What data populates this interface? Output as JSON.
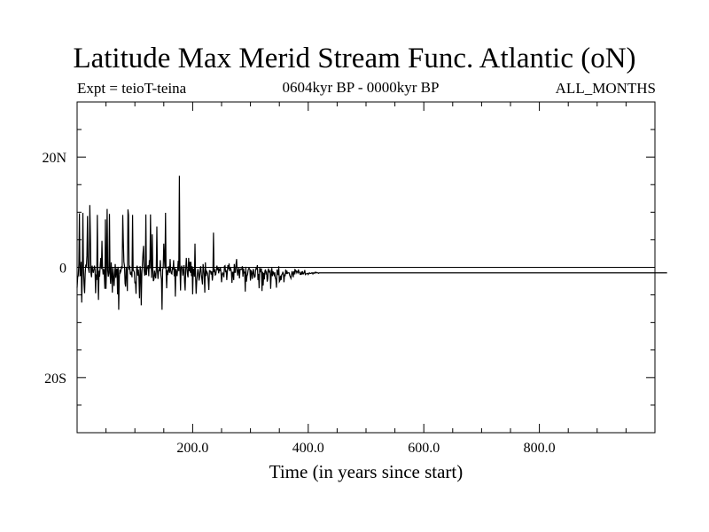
{
  "chart_data": {
    "type": "line",
    "title": "Latitude Max Merid Stream Func. Atlantic (oN)",
    "subtitle_left": "Expt = teioT-teina",
    "subtitle_center": "0604kyr BP - 0000kyr BP",
    "subtitle_right": "ALL_MONTHS",
    "xlabel": "Time (in years since start)",
    "ylabel": "",
    "xlim": [
      0,
      1000
    ],
    "ylim": [
      -30,
      30
    ],
    "x_ticks": [
      200,
      400,
      600,
      800
    ],
    "x_tick_labels": [
      "200.0",
      "400.0",
      "600.0",
      "800.0"
    ],
    "y_ticks": [
      -20,
      0,
      20
    ],
    "y_tick_labels": [
      "20S",
      "0",
      "20N"
    ],
    "grid": false,
    "series": [
      {
        "x_start": 0,
        "x_step": 1,
        "values": [
          -3.7,
          -1.8,
          -1.5,
          0.6,
          9.8,
          -1.5,
          -1.4,
          1.0,
          -6.4,
          -1.5,
          9.9,
          0.1,
          -3.0,
          -4.7,
          -1.2,
          0.5,
          0.1,
          2.1,
          9.3,
          0.2,
          -0.4,
          -1.0,
          11.3,
          5.8,
          -1.1,
          -1.8,
          0.3,
          -0.5,
          -1.0,
          -0.4,
          0.3,
          -0.4,
          -4.7,
          -1.3,
          -2.3,
          9.5,
          -1.6,
          -5.9,
          -0.6,
          -1.7,
          0.4,
          1.7,
          -0.3,
          4.8,
          0.0,
          -1.3,
          -0.3,
          -1.1,
          -3.9,
          8.7,
          -3.9,
          0.3,
          10.6,
          -0.6,
          -1.7,
          -1.0,
          9.7,
          -1.2,
          -3.0,
          0.9,
          -1.4,
          -4.6,
          -0.1,
          -1.7,
          -3.4,
          -1.3,
          0.6,
          -1.9,
          -0.5,
          -0.2,
          -4.9,
          0.1,
          -7.7,
          -1.8,
          -0.4,
          -0.9,
          -0.6,
          0.2,
          -0.2,
          9.5,
          4.8,
          1.0,
          0.3,
          -2.9,
          -3.5,
          0.1,
          -1.0,
          -4.3,
          10.5,
          9.5,
          -0.4,
          0.3,
          -1.2,
          -1.3,
          -0.8,
          -1.8,
          9.5,
          -0.6,
          -0.6,
          -0.9,
          -2.9,
          -2.6,
          -4.8,
          -0.2,
          0.3,
          -1.5,
          -0.4,
          -1.8,
          -5.6,
          0.2,
          -0.6,
          -6.9,
          -1.2,
          0.6,
          2.5,
          3.9,
          -0.5,
          -1.4,
          -1.3,
          9.6,
          -1.4,
          0.0,
          -0.1,
          0.4,
          -1.6,
          1.3,
          -0.2,
          9.6,
          1.1,
          -1.9,
          6.0,
          -0.2,
          -2.5,
          -2.2,
          -0.6,
          -1.4,
          -2.0,
          -0.5,
          7.4,
          -0.7,
          -2.1,
          -0.7,
          -0.3,
          -0.7,
          1.3,
          -1.4,
          -2.2,
          -7.7,
          -0.4,
          -0.1,
          4.3,
          1.6,
          -0.2,
          9.9,
          -0.8,
          -3.8,
          -0.5,
          -1.4,
          0.2,
          -0.4,
          -1.0,
          1.5,
          -0.6,
          -1.1,
          -1.2,
          0.0,
          -0.4,
          1.3,
          -1.6,
          -0.1,
          -5.3,
          -0.3,
          -0.9,
          -1.6,
          -0.3,
          1.2,
          -0.7,
          16.6,
          -0.2,
          -4.2,
          0.0,
          0.2,
          -0.2,
          -1.5,
          -0.6,
          0.4,
          -2.7,
          -4.2,
          -0.4,
          1.7,
          -0.1,
          -1.3,
          -1.8,
          1.7,
          -0.7,
          1.0,
          -1.0,
          1.0,
          -1.6,
          0.2,
          -4.9,
          -0.3,
          -0.4,
          -1.7,
          4.3,
          -1.6,
          -4.8,
          -2.6,
          -1.4,
          -0.3,
          -0.9,
          -2.4,
          -1.8,
          -0.3,
          0.2,
          -1.3,
          -2.2,
          -3.1,
          0.6,
          -0.3,
          -1.5,
          -4.6,
          0.9,
          -1.6,
          -0.7,
          -0.9,
          -1.2,
          -2.4,
          -4.1,
          -0.6,
          -0.6,
          -0.8,
          -1.3,
          -0.7,
          -2.4,
          -1.3,
          6.3,
          -0.9,
          -0.3,
          -1.4,
          -1.3,
          -0.5,
          0.3,
          -0.5,
          -0.1,
          -1.1,
          -0.2,
          -0.7,
          0.0,
          -0.9,
          -2.7,
          -1.3,
          -1.0,
          -1.2,
          -1.8,
          0.2,
          0.3,
          -0.9,
          -0.5,
          -2.3,
          -0.8,
          0.4,
          -0.3,
          0.7,
          -0.7,
          -0.1,
          -0.2,
          -0.8,
          -2.8,
          -0.9,
          -0.9,
          -2.3,
          0.6,
          -0.9,
          -0.9,
          0.6,
          1.5,
          -0.6,
          -1.5,
          -0.5,
          -0.1,
          -2.0,
          -0.4,
          -0.3,
          -0.4,
          -0.3,
          0.2,
          -1.7,
          -0.2,
          -1.1,
          -0.8,
          -4.4,
          0.1,
          -2.6,
          -1.6,
          -1.3,
          -0.5,
          -0.2,
          -0.2,
          -0.4,
          -2.4,
          -0.6,
          -0.7,
          -2.1,
          -1.2,
          -0.3,
          -1.2,
          -1.8,
          -1.7,
          -0.4,
          -0.1,
          -0.3,
          0.4,
          -2.3,
          -1.2,
          -3.8,
          -0.1,
          -0.9,
          -0.4,
          -0.2,
          -4.3,
          -0.8,
          -3.3,
          -1.0,
          -2.2,
          -0.7,
          -0.4,
          -1.1,
          -0.9,
          -2.6,
          -2.0,
          -0.2,
          -0.7,
          -0.9,
          -0.7,
          -3.9,
          -1.3,
          -0.1,
          -1.6,
          -0.7,
          -1.1,
          -1.4,
          -0.9,
          -1.9,
          -2.2,
          -3.7,
          -0.4,
          -0.9,
          -1.4,
          0.2,
          -2.6,
          -2.4,
          -1.5,
          -2.3,
          -1.4,
          -1.2,
          -0.9,
          -1.1,
          -2.7,
          -1.3,
          -1.6,
          -0.4,
          -1.2,
          -0.6,
          -1.1,
          -1.0,
          -1.0,
          -1.0,
          -1.5,
          -1.7,
          -2.0,
          -1.4,
          -0.7,
          -1.1,
          -1.8,
          -0.7,
          -1.3,
          -0.4,
          -0.5,
          -1.0,
          -0.7,
          -0.8,
          -1.0,
          -0.4,
          -0.9,
          -0.9,
          -1.3,
          -1.3,
          -0.8,
          -1.3,
          -0.7,
          -1.2,
          -1.2,
          -0.9,
          -0.5,
          -1.3,
          -1.2,
          -1.2,
          -1.1,
          -1.1,
          -1.3,
          -1.1,
          -1.0,
          -1.1,
          -1.1,
          -1.1,
          -1.0,
          -1.0,
          -1.2,
          -1.0,
          -1.0,
          -1.1,
          -0.9,
          -1.0,
          -0.9,
          -1.0,
          -1.0,
          -1.0,
          -1.1,
          -1.0,
          -1.0,
          -1.0,
          -1.0,
          -1.0,
          -1.0,
          -1.0,
          -1.0,
          -1.0,
          -1.0,
          -1.0,
          -1.0,
          -1.0,
          -1.0,
          -1.0,
          -1.0,
          -1.0,
          -1.0,
          -1.0,
          -1.0,
          -1.0,
          -1.0,
          -1.0,
          -1.0,
          -1.0,
          -1.0,
          -1.0,
          -1.0,
          -1.0,
          -1.0,
          -1.0,
          -1.0,
          -1.0,
          -1.0,
          -1.0,
          -1.0,
          -1.0,
          -1.0,
          -1.0,
          -1.0,
          -1.0,
          -1.0,
          -1.0,
          -1.0,
          -1.0,
          -1.0,
          -1.0,
          -1.0,
          -1.0,
          -1.0,
          -1.0,
          -1.0,
          -1.0,
          -1.0,
          -1.0,
          -1.0,
          -1.0,
          -1.0,
          -1.0,
          -1.0,
          -1.0,
          -1.0,
          -1.0,
          -1.0,
          -1.0,
          -1.0,
          -1.0,
          -1.0,
          -1.0,
          -1.0,
          -1.0,
          -1.0,
          -1.0,
          -1.0,
          -1.0,
          -1.0,
          -1.0,
          -1.0,
          -1.0,
          -1.0,
          -1.0,
          -1.0,
          -1.0,
          -1.0,
          -1.0,
          -1.0,
          -1.0,
          -1.0,
          -1.0,
          -1.0,
          -1.0,
          -1.0,
          -1.0,
          -1.0,
          -1.0,
          -1.0,
          -1.0,
          -1.0,
          -1.0,
          -1.0,
          -1.0,
          -1.0,
          -1.0,
          -1.0,
          -1.0,
          -1.0,
          -1.0,
          -1.0,
          -1.0,
          -1.0,
          -1.0,
          -1.0,
          -1.0,
          -1.0,
          -1.0,
          -1.0,
          -1.0,
          -1.0,
          -1.0,
          -1.0,
          -1.0,
          -1.0,
          -1.0,
          -1.0,
          -1.0,
          -1.0,
          -1.0,
          -1.0,
          -1.0,
          -1.0,
          -1.0,
          -1.0,
          -1.0,
          -1.0,
          -1.0,
          -1.0,
          -1.0,
          -1.0,
          -1.0,
          -1.0,
          -1.0,
          -1.0,
          -1.0,
          -1.0,
          -1.0,
          -1.0,
          -1.0,
          -1.0,
          -1.0,
          -1.0,
          -1.0,
          -1.0,
          -1.0,
          -1.0,
          -1.0,
          -1.0,
          -1.0,
          -1.0,
          -1.0,
          -1.0,
          -1.0,
          -1.0,
          -1.0,
          -1.0,
          -1.0,
          -1.0,
          -1.0,
          -1.0,
          -1.0,
          -1.0,
          -1.0,
          -1.0,
          -1.0,
          -1.0,
          -1.0,
          -1.0,
          -1.0,
          -1.0,
          -1.0,
          -1.0,
          -1.0,
          -1.0,
          -1.0,
          -1.0,
          -1.0,
          -1.0,
          -1.0,
          -1.0,
          -1.0,
          -1.0,
          -1.0,
          -1.0,
          -1.0,
          -1.0,
          -1.0,
          -1.0,
          -1.0,
          -1.0,
          -1.0,
          -1.0,
          -1.0,
          -1.0,
          -1.0,
          -1.0,
          -1.0,
          -1.0,
          -1.0,
          -1.0,
          -1.0,
          -1.0,
          -1.0,
          -1.0,
          -1.0,
          -1.0,
          -1.0,
          -1.0,
          -1.0,
          -1.0,
          -1.0,
          -1.0,
          -1.0,
          -1.0,
          -1.0,
          -1.0,
          -1.0,
          -1.0,
          -1.0,
          -1.0,
          -1.0,
          -1.0,
          -1.0,
          -1.0,
          -1.0,
          -1.0,
          -1.0,
          -1.0,
          -1.0,
          -1.0,
          -1.0,
          -1.0,
          -1.0,
          -1.0,
          -1.0,
          -1.0,
          -1.0,
          -1.0,
          -1.0,
          -1.0,
          -1.0,
          -1.0,
          -1.0,
          -1.0,
          -1.0,
          -1.0,
          -1.0,
          -1.0,
          -1.0,
          -1.0,
          -1.0,
          -1.0,
          -1.0,
          -1.0,
          -1.0,
          -1.0,
          -1.0,
          -1.0,
          -1.0,
          -1.0,
          -1.0,
          -1.0,
          -1.0,
          -1.0,
          -1.0,
          -1.0,
          -1.0,
          -1.0,
          -1.0,
          -1.0,
          -1.0,
          -1.0,
          -1.0,
          -1.0,
          -1.0,
          -1.0,
          -1.0,
          -1.0,
          -1.0,
          -1.0,
          -1.0,
          -1.0,
          -1.0,
          -1.0,
          -1.0,
          -1.0,
          -1.0,
          -1.0,
          -1.0,
          -1.0,
          -1.0,
          -1.0,
          -1.0,
          -1.0,
          -1.0,
          -1.0,
          -1.0,
          -1.0,
          -1.0,
          -1.0,
          -1.0,
          -1.0,
          -1.0,
          -1.0,
          -1.0,
          -1.0,
          -1.0,
          -1.0,
          -1.0,
          -1.0,
          -1.0,
          -1.0,
          -1.0,
          -1.0,
          -1.0,
          -1.0,
          -1.0,
          -1.0,
          -1.0,
          -1.0,
          -1.0,
          -1.0,
          -1.0,
          -1.0,
          -1.0,
          -1.0,
          -1.0,
          -1.0,
          -1.0,
          -1.0,
          -1.0,
          -1.0,
          -1.0,
          -1.0,
          -1.0,
          -1.0,
          -1.0,
          -1.0,
          -1.0,
          -1.0,
          -1.0,
          -1.0,
          -1.0,
          -1.0,
          -1.0,
          -1.0,
          -1.0,
          -1.0,
          -1.0,
          -1.0,
          -1.0,
          -1.0,
          -1.0,
          -1.0,
          -1.0,
          -1.0,
          -1.0,
          -1.0,
          -1.0,
          -1.0,
          -1.0,
          -1.0,
          -1.0,
          -1.0,
          -1.0,
          -1.0,
          -1.0,
          -1.0,
          -1.0,
          -1.0,
          -1.0,
          -1.0,
          -1.0,
          -1.0,
          -1.0,
          -1.0,
          -1.0,
          -1.0,
          -1.0,
          -1.0,
          -1.0,
          -1.0,
          -1.0,
          -1.0,
          -1.0,
          -1.0,
          -1.0,
          -1.0,
          -1.0,
          -1.0,
          -1.0,
          -1.0,
          -1.0,
          -1.0,
          -1.0,
          -1.0,
          -1.0,
          -1.0,
          -1.0,
          -1.0,
          -1.0,
          -1.0,
          -1.0,
          -1.0,
          -1.0,
          -1.0,
          -1.0,
          -1.0,
          -1.0,
          -1.0,
          -1.0,
          -1.0,
          -1.0,
          -1.0,
          -1.0,
          -1.0,
          -1.0,
          -1.0,
          -1.0,
          -1.0,
          -1.0,
          -1.0,
          -1.0,
          -1.0,
          -1.0,
          -1.0,
          -1.0,
          -1.0,
          -1.0,
          -1.0,
          -1.0,
          -1.0,
          -1.0,
          -1.0,
          -1.0,
          -1.0,
          -1.0,
          -1.0,
          -1.0,
          -1.0,
          -1.0,
          -1.0,
          -1.0,
          -1.0,
          -1.0,
          -1.0,
          -1.0,
          -1.0,
          -1.0,
          -1.0,
          -1.0,
          -1.0,
          -1.0,
          -1.0,
          -1.0,
          -1.0,
          -1.0,
          -1.0,
          -1.0,
          -1.0,
          -1.0,
          -1.0,
          -1.0,
          -1.0,
          -1.0,
          -1.0,
          -1.0,
          -1.0,
          -1.0,
          -1.0,
          -1.0,
          -1.0,
          -1.0,
          -1.0,
          -1.0,
          -1.0,
          -1.0,
          -1.0,
          -1.0,
          -1.0,
          -1.0,
          -1.0,
          -1.0,
          -1.0,
          -1.0,
          -1.0,
          -1.0,
          -1.0,
          -1.0,
          -1.0,
          -1.0,
          -1.0,
          -1.0,
          -1.0,
          -1.0,
          -1.0,
          -1.0,
          -1.0,
          -1.0,
          -1.0,
          -1.0,
          -1.0,
          -1.0,
          -1.0,
          -1.0,
          -1.0,
          -1.0,
          -1.0,
          -1.0,
          -1.0,
          -1.0,
          -1.0,
          -1.0,
          -1.0,
          -1.0,
          -1.0,
          -1.0,
          -1.0,
          -1.0,
          -1.0,
          -1.0,
          -1.0,
          -1.0,
          -1.0,
          -1.0,
          -1.0,
          -1.0,
          -1.0,
          -1.0,
          -1.0,
          -1.0,
          -1.0,
          -1.0,
          -1.0,
          -1.0,
          -1.0,
          -1.0,
          -1.0,
          -1.0,
          -1.0,
          -1.0,
          -1.0,
          -1.0,
          -1.0,
          -1.0,
          -1.0,
          -1.0,
          -1.0,
          -1.0,
          -1.0,
          -1.0,
          -1.0,
          -1.0,
          -1.0,
          -1.0,
          -1.0,
          -1.0,
          -1.0,
          -1.0,
          -1.0,
          -1.0,
          -1.0,
          -1.0,
          -1.0,
          -1.0,
          -1.0,
          -1.0,
          -1.0,
          -1.0,
          -1.0,
          -1.0,
          -1.0,
          -1.0,
          -1.0,
          -1.0,
          -1.0,
          -1.0,
          -1.0,
          -1.0,
          -1.0,
          -1.0,
          -1.0,
          -1.0,
          -1.0,
          -1.0,
          -1.0,
          -1.0,
          -1.0,
          -1.0,
          -1.0,
          -1.0,
          -1.0,
          -1.0,
          -1.0,
          -1.0
        ]
      }
    ]
  }
}
